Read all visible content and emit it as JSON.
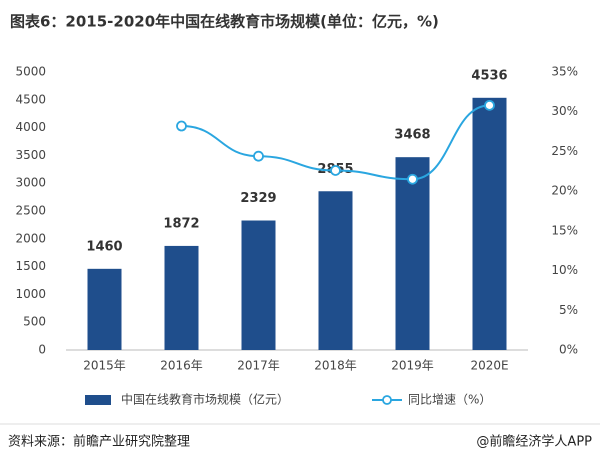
{
  "chart_data": {
    "type": "bar_line",
    "title": "图表6：2015-2020年中国在线教育市场规模(单位：亿元，%)",
    "source": "资料来源：前瞻产业研究院整理",
    "credit": "@前瞻经济学人APP",
    "categories": [
      "2015年",
      "2016年",
      "2017年",
      "2018年",
      "2019年",
      "2020E"
    ],
    "series": [
      {
        "name": "中国在线教育市场规模（亿元）",
        "type": "bar",
        "color": "#1f4e8c",
        "values": [
          1460,
          1872,
          2329,
          2855,
          3468,
          4536
        ]
      },
      {
        "name": "同比增速（%）",
        "type": "line",
        "axis": "y2",
        "color": "#2aa6e0",
        "values": [
          null,
          28.2,
          24.4,
          22.6,
          21.5,
          30.8
        ]
      }
    ],
    "ylim": [
      0,
      5000
    ],
    "yticks": [
      0,
      500,
      1000,
      1500,
      2000,
      2500,
      3000,
      3500,
      4000,
      4500,
      5000
    ],
    "y2lim": [
      0,
      35
    ],
    "y2ticks": [
      {
        "value": 0,
        "label": "0%"
      },
      {
        "value": 5,
        "label": "5%"
      },
      {
        "value": 10,
        "label": "10%"
      },
      {
        "value": 15,
        "label": "15%"
      },
      {
        "value": 20,
        "label": "20%"
      },
      {
        "value": 25,
        "label": "25%"
      },
      {
        "value": 30,
        "label": "30%"
      },
      {
        "value": 35,
        "label": "35%"
      }
    ]
  }
}
